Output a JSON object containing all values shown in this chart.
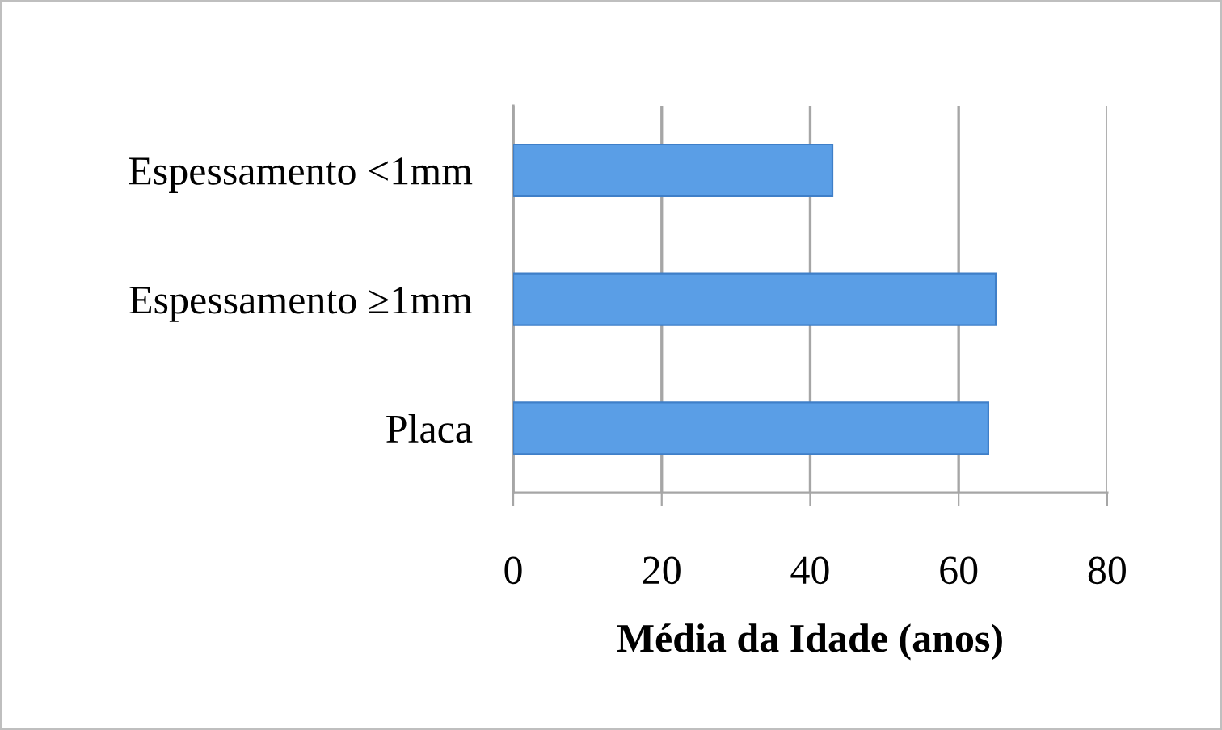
{
  "chart_data": {
    "type": "bar",
    "orientation": "horizontal",
    "categories": [
      "Espessamento <1mm",
      "Espessamento ≥1mm",
      "Placa"
    ],
    "values": [
      43,
      65,
      64
    ],
    "color": "#5a9ee6",
    "xlabel": "Média da Idade (anos)",
    "xlim": [
      0,
      80
    ],
    "xticks": [
      0,
      20,
      40,
      60,
      80
    ],
    "grid": "x",
    "legend": false
  }
}
